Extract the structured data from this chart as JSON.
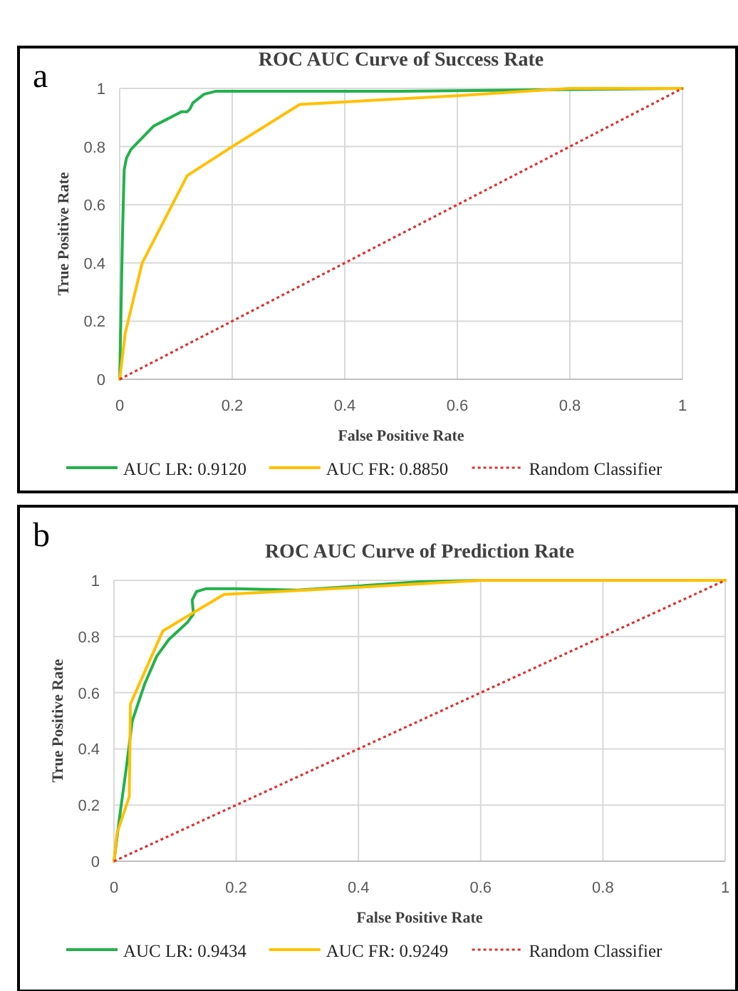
{
  "chart_data": [
    {
      "type": "line",
      "title": "ROC AUC Curve of Success Rate",
      "xlabel": "False Positive Rate",
      "ylabel": "True Positive Rate",
      "annotations": [
        "a"
      ],
      "xlim": [
        0,
        1
      ],
      "ylim": [
        0,
        1
      ],
      "xticks": [
        0,
        0.2,
        0.4,
        0.6,
        0.8,
        1
      ],
      "yticks": [
        0,
        0.2,
        0.4,
        0.6,
        0.8,
        1
      ],
      "grid": true,
      "legend": "bottom",
      "series": [
        {
          "name": "AUC LR: 0.9120",
          "color": "#22b14c",
          "line_style": "solid",
          "x": [
            0,
            0.005,
            0.008,
            0.012,
            0.02,
            0.04,
            0.06,
            0.08,
            0.1,
            0.11,
            0.12,
            0.125,
            0.13,
            0.15,
            0.17,
            0.2,
            0.5,
            1
          ],
          "values": [
            0,
            0.5,
            0.72,
            0.76,
            0.79,
            0.83,
            0.87,
            0.89,
            0.91,
            0.92,
            0.92,
            0.93,
            0.95,
            0.98,
            0.99,
            0.99,
            0.99,
            1
          ]
        },
        {
          "name": "AUC FR: 0.8850",
          "color": "#ffc000",
          "line_style": "solid",
          "x": [
            0,
            0.01,
            0.04,
            0.12,
            0.2,
            0.32,
            0.6,
            0.8,
            1
          ],
          "values": [
            0,
            0.16,
            0.4,
            0.7,
            0.8,
            0.945,
            0.975,
            1,
            1
          ]
        },
        {
          "name": "Random Classifier",
          "color": "#e03030",
          "line_style": "dotted",
          "x": [
            0,
            1
          ],
          "values": [
            0,
            1
          ]
        }
      ]
    },
    {
      "type": "line",
      "title": "ROC AUC Curve of Prediction Rate",
      "xlabel": "False Positive Rate",
      "ylabel": "True Positive Rate",
      "annotations": [
        "b"
      ],
      "xlim": [
        0,
        1
      ],
      "ylim": [
        0,
        1
      ],
      "xticks": [
        0,
        0.2,
        0.4,
        0.6,
        0.8,
        1
      ],
      "yticks": [
        0,
        0.2,
        0.4,
        0.6,
        0.8,
        1
      ],
      "grid": true,
      "legend": "bottom",
      "series": [
        {
          "name": "AUC LR: 0.9434",
          "color": "#22b14c",
          "line_style": "solid",
          "x": [
            0,
            0.01,
            0.02,
            0.03,
            0.05,
            0.07,
            0.09,
            0.12,
            0.13,
            0.128,
            0.135,
            0.15,
            0.2,
            0.3,
            0.4,
            0.5,
            0.6,
            1
          ],
          "values": [
            0,
            0.17,
            0.33,
            0.5,
            0.63,
            0.73,
            0.79,
            0.85,
            0.88,
            0.93,
            0.96,
            0.97,
            0.97,
            0.965,
            0.98,
            0.995,
            1,
            1
          ]
        },
        {
          "name": "AUC FR: 0.9249",
          "color": "#ffc000",
          "line_style": "solid",
          "x": [
            0,
            0.005,
            0.025,
            0.027,
            0.08,
            0.18,
            0.4,
            0.6,
            0.9,
            1
          ],
          "values": [
            0,
            0.1,
            0.23,
            0.56,
            0.82,
            0.95,
            0.975,
            1,
            1,
            1
          ]
        },
        {
          "name": "Random Classifier",
          "color": "#e03030",
          "line_style": "dotted",
          "x": [
            0,
            1
          ],
          "values": [
            0,
            1
          ]
        }
      ]
    }
  ]
}
